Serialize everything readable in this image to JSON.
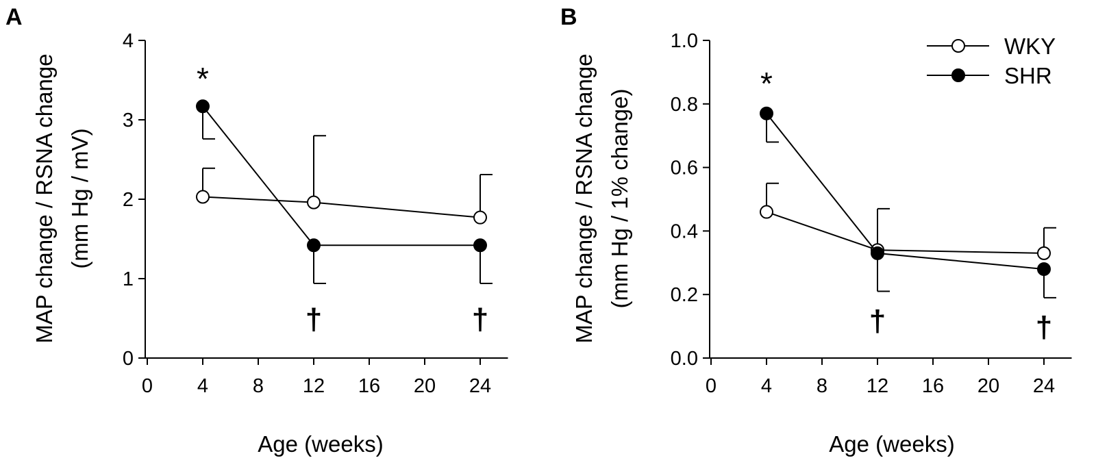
{
  "colors": {
    "ink": "#000000",
    "background": "#ffffff",
    "open_marker_fill": "#ffffff",
    "filled_marker_fill": "#000000"
  },
  "legend": {
    "entries": [
      {
        "label": "WKY",
        "marker": "open-circle"
      },
      {
        "label": "SHR",
        "marker": "filled-circle"
      }
    ],
    "placement": "top-right of panel B"
  },
  "chart_data": [
    {
      "id": "A",
      "panel_label": "A",
      "type": "line",
      "title": "",
      "xlabel": "Age (weeks)",
      "ylabel_lines": [
        "MAP change / RSNA change",
        "(mm Hg / mV)"
      ],
      "xlim": [
        0,
        26
      ],
      "ylim": [
        0,
        4
      ],
      "xticks": [
        0,
        4,
        8,
        12,
        16,
        20,
        24
      ],
      "xtick_labels": [
        "0",
        "4",
        "8",
        "12",
        "16",
        "20",
        "24"
      ],
      "yticks": [
        0,
        1,
        2,
        3,
        4
      ],
      "ytick_labels": [
        "0",
        "1",
        "2",
        "3",
        "4"
      ],
      "x": [
        4,
        12,
        24
      ],
      "series": [
        {
          "name": "WKY",
          "marker": "open-circle",
          "values": [
            2.03,
            1.96,
            1.77
          ],
          "errors": [
            0.36,
            0.84,
            0.54
          ],
          "error_direction": "up"
        },
        {
          "name": "SHR",
          "marker": "filled-circle",
          "values": [
            3.17,
            1.42,
            1.42
          ],
          "errors": [
            0.41,
            0.48,
            0.48
          ],
          "error_direction": "down"
        }
      ],
      "annotations": [
        {
          "text": "*",
          "x": 4,
          "y": 3.5,
          "kind": "star"
        },
        {
          "text": "†",
          "x": 12,
          "y": 0.5,
          "kind": "dagger"
        },
        {
          "text": "†",
          "x": 24,
          "y": 0.5,
          "kind": "dagger"
        }
      ]
    },
    {
      "id": "B",
      "panel_label": "B",
      "type": "line",
      "title": "",
      "xlabel": "Age (weeks)",
      "ylabel_lines": [
        "MAP change / RSNA change",
        "(mm Hg / 1% change)"
      ],
      "xlim": [
        0,
        26
      ],
      "ylim": [
        0,
        1.0
      ],
      "xticks": [
        0,
        4,
        8,
        12,
        16,
        20,
        24
      ],
      "xtick_labels": [
        "0",
        "4",
        "8",
        "12",
        "16",
        "20",
        "24"
      ],
      "yticks": [
        0,
        0.2,
        0.4,
        0.6,
        0.8,
        1.0
      ],
      "ytick_labels": [
        "0.0",
        "0.2",
        "0.4",
        "0.6",
        "0.8",
        "1.0"
      ],
      "x": [
        4,
        12,
        24
      ],
      "series": [
        {
          "name": "WKY",
          "marker": "open-circle",
          "values": [
            0.46,
            0.34,
            0.33
          ],
          "errors": [
            0.09,
            0.13,
            0.08
          ],
          "error_direction": "up"
        },
        {
          "name": "SHR",
          "marker": "filled-circle",
          "values": [
            0.77,
            0.33,
            0.28
          ],
          "errors": [
            0.09,
            0.12,
            0.09
          ],
          "error_direction": "down"
        }
      ],
      "annotations": [
        {
          "text": "*",
          "x": 4,
          "y": 0.86,
          "kind": "star"
        },
        {
          "text": "†",
          "x": 12,
          "y": 0.12,
          "kind": "dagger"
        },
        {
          "text": "†",
          "x": 24,
          "y": 0.1,
          "kind": "dagger"
        }
      ]
    }
  ]
}
